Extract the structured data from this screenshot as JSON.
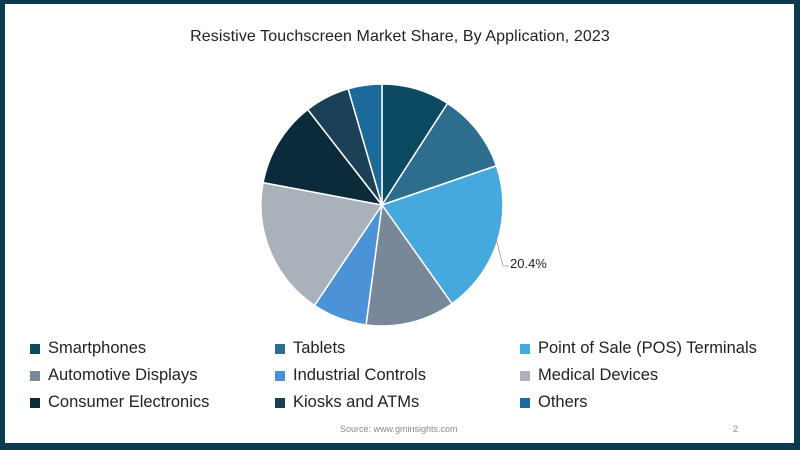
{
  "chart_data": {
    "type": "pie",
    "title": "Resistive Touchscreen Market Share, By Application, 2023",
    "categories": [
      "Smartphones",
      "Tablets",
      "Point of Sale (POS) Terminals",
      "Automotive Displays",
      "Industrial Controls",
      "Medical Devices",
      "Consumer Electronics",
      "Kiosks and ATMs",
      "Others"
    ],
    "values": [
      9.1,
      10.6,
      20.4,
      11.9,
      7.3,
      18.5,
      11.5,
      6.0,
      4.5
    ],
    "colors": [
      "#0b4a60",
      "#2d6e8e",
      "#45a9dd",
      "#788899",
      "#4c92d6",
      "#a9b2bb",
      "#0b2a3a",
      "#1a3f56",
      "#1c6a9a"
    ],
    "annotations": [
      {
        "category": "Point of Sale (POS) Terminals",
        "label": "20.4%"
      }
    ],
    "legend_position": "bottom",
    "start_angle": "12 o'clock, clockwise"
  },
  "title": "Resistive Touchscreen Market Share, By Application, 2023",
  "data_label": "20.4%",
  "legend": {
    "items": [
      {
        "label": "Smartphones",
        "color": "#0b4a60"
      },
      {
        "label": "Tablets",
        "color": "#2d6e8e"
      },
      {
        "label": "Point of Sale (POS) Terminals",
        "color": "#45a9dd"
      },
      {
        "label": "Automotive Displays",
        "color": "#788899"
      },
      {
        "label": "Industrial Controls",
        "color": "#4c92d6"
      },
      {
        "label": "Medical Devices",
        "color": "#a9b2bb"
      },
      {
        "label": "Consumer Electronics",
        "color": "#0b2a3a"
      },
      {
        "label": "Kiosks and ATMs",
        "color": "#1a3f56"
      },
      {
        "label": "Others",
        "color": "#1c6a9a"
      }
    ]
  },
  "footer": {
    "source": "Source: www.gminsights.com",
    "page_number": "2"
  },
  "colors": {
    "frame_border": "#0d3a4f",
    "background": "#ffffff"
  }
}
